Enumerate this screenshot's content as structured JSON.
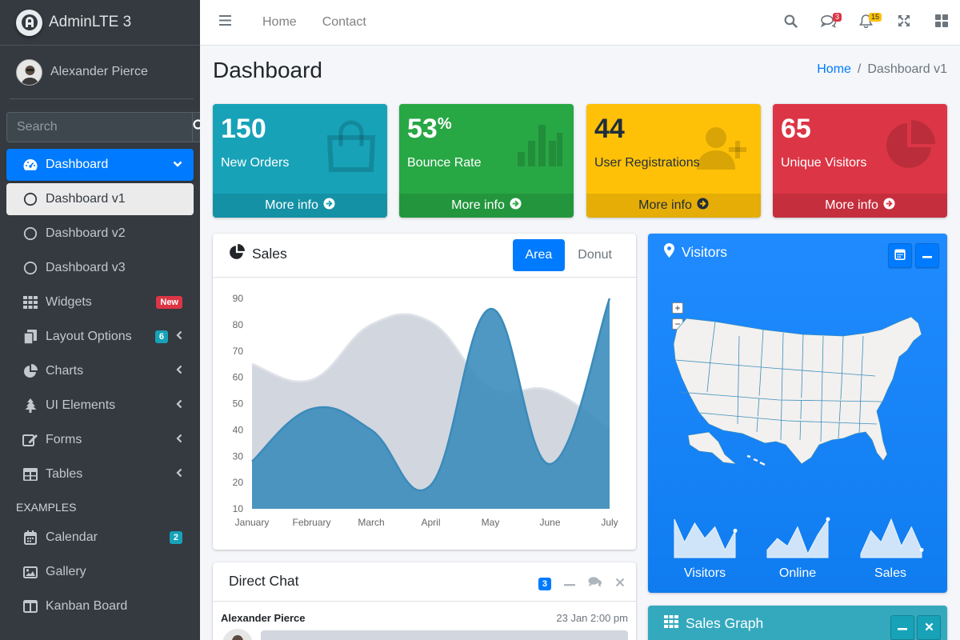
{
  "brand": {
    "name": "AdminLTE 3"
  },
  "user": {
    "name": "Alexander Pierce"
  },
  "search": {
    "placeholder": "Search"
  },
  "sidebar": {
    "items": [
      {
        "label": "Dashboard",
        "icon": "tachometer-icon"
      },
      {
        "label": "Dashboard v1",
        "icon": "circle-icon"
      },
      {
        "label": "Dashboard v2",
        "icon": "circle-icon"
      },
      {
        "label": "Dashboard v3",
        "icon": "circle-icon"
      },
      {
        "label": "Widgets",
        "icon": "grid-icon",
        "badge": "New"
      },
      {
        "label": "Layout Options",
        "icon": "copy-icon",
        "badge": "6"
      },
      {
        "label": "Charts",
        "icon": "pie-chart-icon"
      },
      {
        "label": "UI Elements",
        "icon": "tree-icon"
      },
      {
        "label": "Forms",
        "icon": "edit-icon"
      },
      {
        "label": "Tables",
        "icon": "table-icon"
      }
    ],
    "header": "EXAMPLES",
    "examples": [
      {
        "label": "Calendar",
        "icon": "calendar-icon",
        "badge": "2"
      },
      {
        "label": "Gallery",
        "icon": "image-icon"
      },
      {
        "label": "Kanban Board",
        "icon": "columns-icon"
      }
    ]
  },
  "topbar": {
    "links": [
      "Home",
      "Contact"
    ],
    "messages_count": "3",
    "notifications_count": "15"
  },
  "page": {
    "title": "Dashboard",
    "breadcrumb": {
      "home": "Home",
      "sep": "/",
      "current": "Dashboard v1"
    }
  },
  "boxes": [
    {
      "value": "150",
      "label": "New Orders",
      "more": "More info",
      "icon": "shopping-bag-icon",
      "color": "#17a2b8"
    },
    {
      "value": "53",
      "sup": "%",
      "label": "Bounce Rate",
      "more": "More info",
      "icon": "bar-chart-icon",
      "color": "#28a745"
    },
    {
      "value": "44",
      "label": "User Registrations",
      "more": "More info",
      "icon": "user-plus-icon",
      "color": "#ffc107"
    },
    {
      "value": "65",
      "label": "Unique Visitors",
      "more": "More info",
      "icon": "pie-chart-icon",
      "color": "#dc3545"
    }
  ],
  "sales": {
    "title": "Sales",
    "tabs": [
      "Area",
      "Donut"
    ]
  },
  "chart_data": {
    "type": "area",
    "x": [
      "January",
      "February",
      "March",
      "April",
      "May",
      "June",
      "July"
    ],
    "y_ticks": [
      10,
      20,
      30,
      40,
      50,
      60,
      70,
      80,
      90
    ],
    "ylim": [
      10,
      90
    ],
    "series": [
      {
        "values": [
          65,
          59,
          80,
          81,
          56,
          55,
          40
        ],
        "color": "#d2d6de"
      },
      {
        "values": [
          28,
          48,
          40,
          19,
          86,
          27,
          90
        ],
        "color": "#3c8dbc"
      }
    ]
  },
  "visitors": {
    "title": "Visitors",
    "zoom_in": "+",
    "zoom_out": "−",
    "sparklines": [
      {
        "label": "Visitors",
        "values": [
          10,
          4,
          9,
          5,
          8,
          2,
          7
        ]
      },
      {
        "label": "Online",
        "values": [
          2,
          5,
          3,
          8,
          1,
          6,
          10
        ]
      },
      {
        "label": "Sales",
        "values": [
          1,
          7,
          4,
          10,
          3,
          8,
          2
        ]
      }
    ]
  },
  "chat": {
    "title": "Direct Chat",
    "badge": "3",
    "message": {
      "author": "Alexander Pierce",
      "time": "23 Jan 2:00 pm"
    }
  },
  "sales_graph": {
    "title": "Sales Graph"
  }
}
